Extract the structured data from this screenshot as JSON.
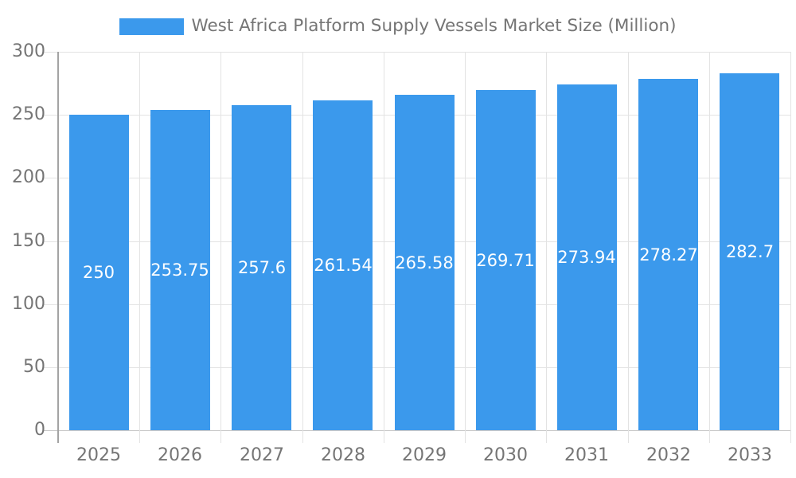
{
  "chart_data": {
    "type": "bar",
    "title": "West Africa Platform Supply Vessels Market Size (Million)",
    "categories": [
      "2025",
      "2026",
      "2027",
      "2028",
      "2029",
      "2030",
      "2031",
      "2032",
      "2033"
    ],
    "values": [
      250,
      253.75,
      257.6,
      261.54,
      265.58,
      269.71,
      273.94,
      278.27,
      282.7
    ],
    "bar_value_labels": [
      "250",
      "253.75",
      "257.6",
      "261.54",
      "265.58",
      "269.71",
      "273.94",
      "278.27",
      "282.7"
    ],
    "xlabel": "",
    "ylabel": "",
    "ylim": [
      0,
      300
    ],
    "yticks": [
      0,
      50,
      100,
      150,
      200,
      250,
      300
    ],
    "grid": true,
    "legend_position": "top",
    "colors": {
      "bar": "#3B99EC",
      "bar_label_text": "#ffffff",
      "axis_text": "#757575",
      "title_text": "#757575",
      "gridline": "#e3e3e3",
      "x_axis_line": "#c9c9c9",
      "y_axis_line": "#a3a3a3",
      "background": "#ffffff"
    }
  }
}
